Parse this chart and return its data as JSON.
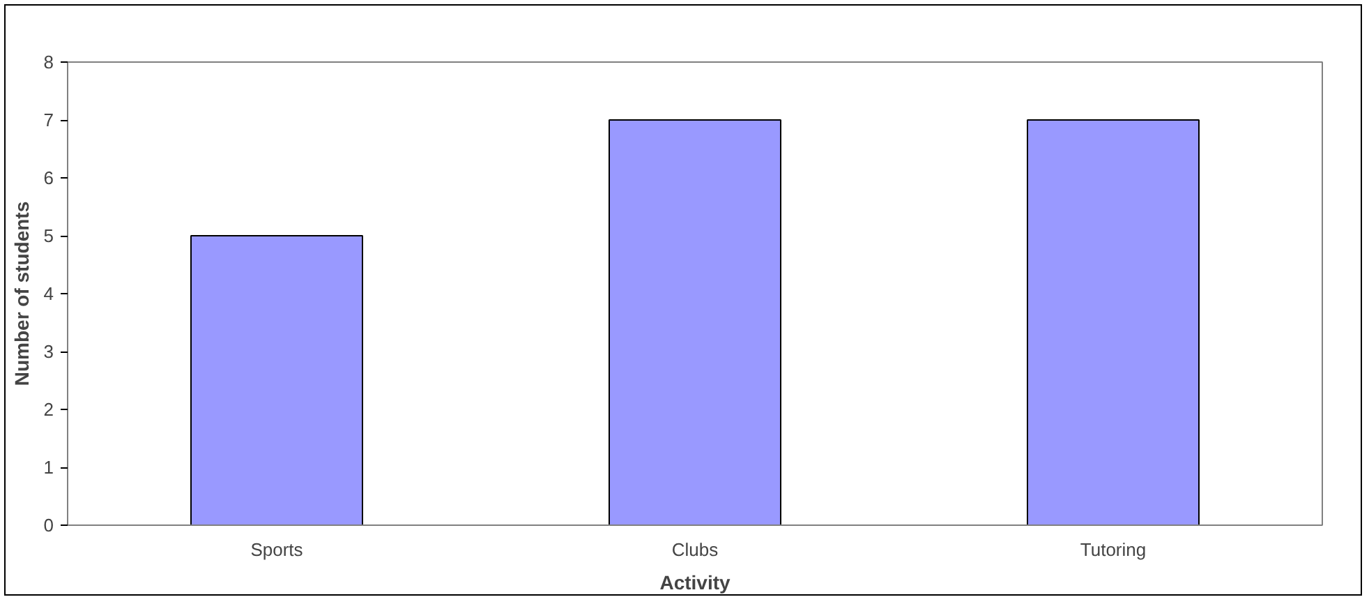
{
  "chart_data": {
    "type": "bar",
    "xlabel": "Activity",
    "ylabel": "Number of students",
    "categories": [
      "Sports",
      "Clubs",
      "Tutoring"
    ],
    "values": [
      5,
      7,
      7
    ],
    "color": "#9999ff",
    "ylim": [
      0,
      8
    ],
    "yticks": [
      0,
      1,
      2,
      3,
      4,
      5,
      6,
      7,
      8
    ],
    "grid": false
  }
}
